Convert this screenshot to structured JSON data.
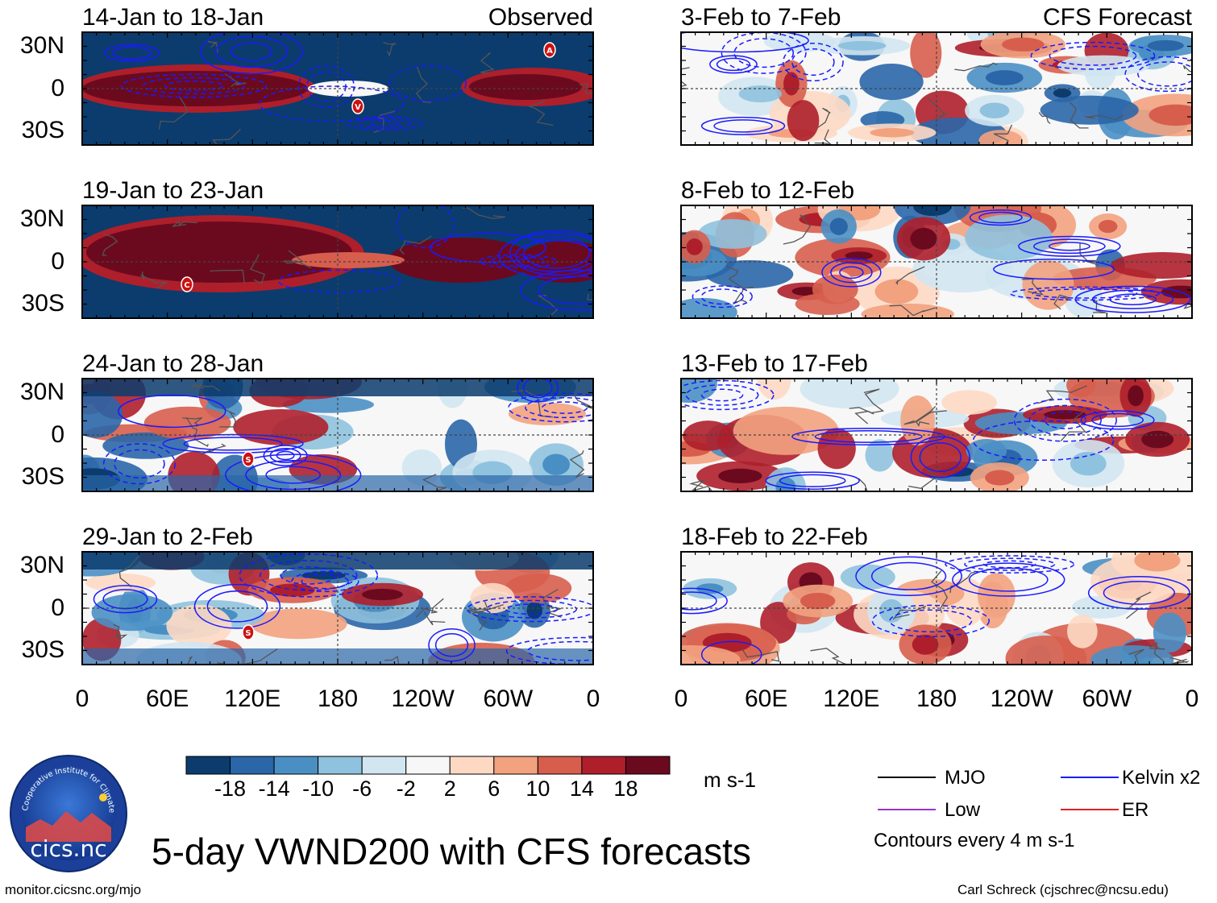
{
  "chart_data": {
    "type": "heatmap",
    "title": "5-day VWND200 with CFS forecasts",
    "variable": "VWND200",
    "units": "m s-1",
    "x_ticks": [
      "0",
      "60E",
      "120E",
      "180",
      "120W",
      "60W",
      "0"
    ],
    "y_ticks": [
      "30N",
      "0",
      "30S"
    ],
    "ylim_deg": [
      -40,
      40
    ],
    "colorbar": {
      "levels": [
        "-18",
        "-14",
        "-10",
        "-6",
        "-2",
        "2",
        "6",
        "10",
        "14",
        "18"
      ],
      "colors": [
        "#0b3c6d",
        "#2a66a8",
        "#4a8fc4",
        "#8fc2de",
        "#d2e6f1",
        "#f7f7f7",
        "#fdd9c4",
        "#f2a27f",
        "#d75e4d",
        "#ae1f2b",
        "#6b0a1e"
      ]
    },
    "column_labels": {
      "left": "Observed",
      "right": "CFS Forecast"
    },
    "panels": [
      {
        "column": "left",
        "title": "14-Jan to 18-Jan",
        "markers": [
          "A",
          "V"
        ]
      },
      {
        "column": "left",
        "title": "19-Jan to 23-Jan",
        "markers": [
          "C"
        ]
      },
      {
        "column": "left",
        "title": "24-Jan to 28-Jan",
        "markers": [
          "S"
        ]
      },
      {
        "column": "left",
        "title": "29-Jan to 2-Feb",
        "markers": [
          "S"
        ]
      },
      {
        "column": "right",
        "title": "3-Feb to 7-Feb",
        "markers": []
      },
      {
        "column": "right",
        "title": "8-Feb to 12-Feb",
        "markers": []
      },
      {
        "column": "right",
        "title": "13-Feb to 17-Feb",
        "markers": []
      },
      {
        "column": "right",
        "title": "18-Feb to 22-Feb",
        "markers": []
      }
    ],
    "legend": [
      {
        "label": "MJO",
        "color": "#000000"
      },
      {
        "label": "Kelvin x2",
        "color": "#1a1aff"
      },
      {
        "label": "Low",
        "color": "#9933cc"
      },
      {
        "label": "ER",
        "color": "#dd2222"
      }
    ],
    "contour_note": "Contours every 4 m s-1"
  },
  "logo_text": "cics.nc",
  "logo_ring_text": "Cooperative Institute for Climate and Satellites",
  "footer": {
    "left": "monitor.cicsnc.org/mjo",
    "right": "Carl Schreck (cjschrec@ncsu.edu)"
  }
}
